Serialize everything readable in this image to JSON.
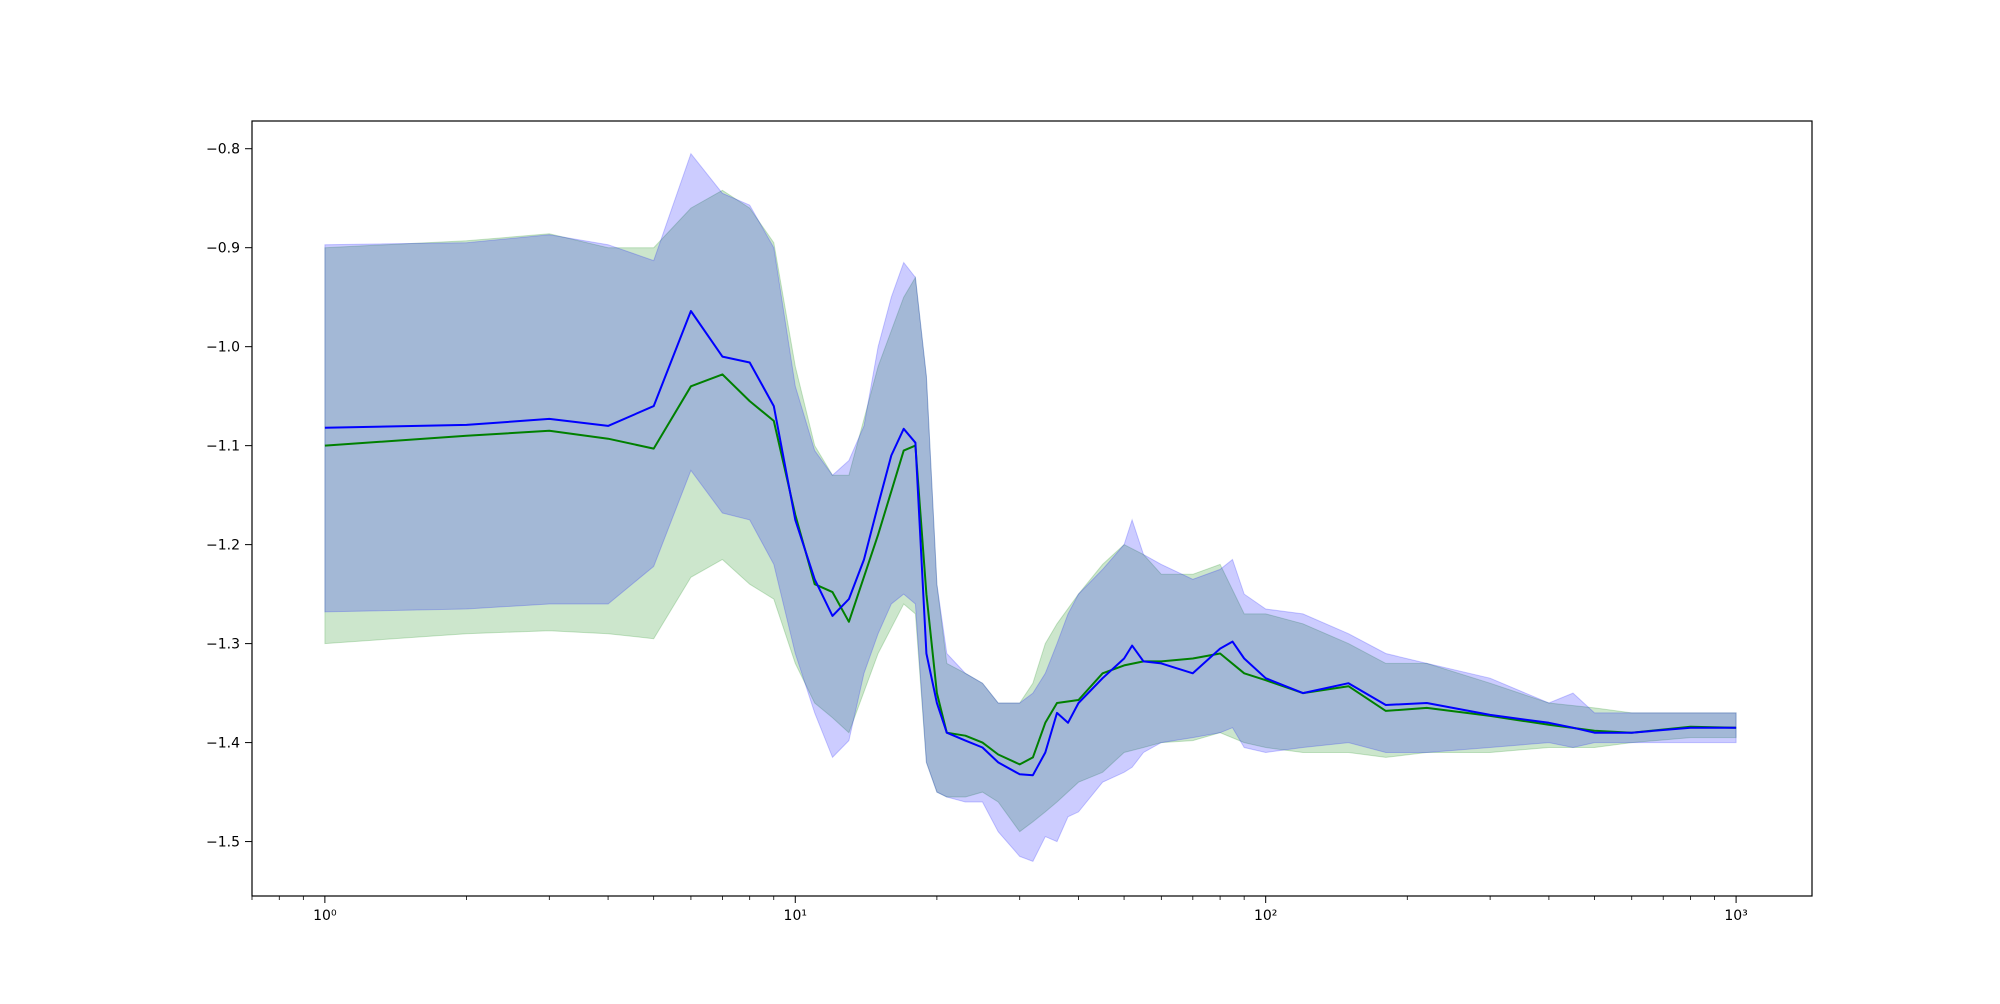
{
  "chart_data": {
    "type": "line",
    "title": "",
    "xlabel": "",
    "ylabel": "",
    "xscale": "log",
    "xlim": [
      0.7,
      1450
    ],
    "ylim": [
      -1.555,
      -0.772
    ],
    "grid": false,
    "legend": "none",
    "x_ticks": [
      {
        "value": 1,
        "label": "10⁰"
      },
      {
        "value": 10,
        "label": "10¹"
      },
      {
        "value": 100,
        "label": "10²"
      },
      {
        "value": 1000,
        "label": "10³"
      }
    ],
    "y_ticks": [
      {
        "value": -0.8,
        "label": "−0.8"
      },
      {
        "value": -0.9,
        "label": "−0.9"
      },
      {
        "value": -1.0,
        "label": "−1.0"
      },
      {
        "value": -1.1,
        "label": "−1.1"
      },
      {
        "value": -1.2,
        "label": "−1.2"
      },
      {
        "value": -1.3,
        "label": "−1.3"
      },
      {
        "value": -1.4,
        "label": "−1.4"
      },
      {
        "value": -1.5,
        "label": "−1.5"
      }
    ],
    "series": [
      {
        "color": "#008000",
        "band_color": "#008000",
        "x": [
          1,
          2,
          3,
          4,
          5,
          6,
          7,
          8,
          9,
          10,
          11,
          12,
          13,
          15,
          17,
          18,
          19,
          20,
          21,
          23,
          25,
          27,
          30,
          32,
          34,
          36,
          40,
          45,
          50,
          55,
          60,
          70,
          80,
          90,
          100,
          120,
          150,
          180,
          220,
          300,
          400,
          500,
          600,
          800,
          1000
        ],
        "y": [
          -1.1,
          -1.09,
          -1.085,
          -1.093,
          -1.103,
          -1.04,
          -1.028,
          -1.055,
          -1.075,
          -1.17,
          -1.24,
          -1.248,
          -1.278,
          -1.19,
          -1.105,
          -1.1,
          -1.25,
          -1.35,
          -1.39,
          -1.393,
          -1.4,
          -1.412,
          -1.422,
          -1.415,
          -1.38,
          -1.36,
          -1.357,
          -1.33,
          -1.322,
          -1.318,
          -1.318,
          -1.315,
          -1.31,
          -1.33,
          -1.337,
          -1.35,
          -1.343,
          -1.368,
          -1.365,
          -1.373,
          -1.382,
          -1.388,
          -1.39,
          -1.384,
          -1.385
        ],
        "lower": [
          -1.3,
          -1.29,
          -1.287,
          -1.29,
          -1.295,
          -1.233,
          -1.215,
          -1.24,
          -1.255,
          -1.32,
          -1.36,
          -1.375,
          -1.39,
          -1.31,
          -1.26,
          -1.27,
          -1.42,
          -1.45,
          -1.455,
          -1.455,
          -1.45,
          -1.46,
          -1.49,
          -1.48,
          -1.47,
          -1.46,
          -1.44,
          -1.43,
          -1.41,
          -1.405,
          -1.4,
          -1.398,
          -1.39,
          -1.4,
          -1.405,
          -1.41,
          -1.41,
          -1.415,
          -1.41,
          -1.41,
          -1.405,
          -1.405,
          -1.4,
          -1.395,
          -1.395
        ],
        "upper": [
          -0.9,
          -0.893,
          -0.886,
          -0.9,
          -0.9,
          -0.86,
          -0.842,
          -0.86,
          -0.895,
          -1.02,
          -1.1,
          -1.13,
          -1.13,
          -1.02,
          -0.95,
          -0.93,
          -1.03,
          -1.24,
          -1.32,
          -1.33,
          -1.34,
          -1.36,
          -1.36,
          -1.34,
          -1.3,
          -1.28,
          -1.25,
          -1.22,
          -1.2,
          -1.21,
          -1.23,
          -1.23,
          -1.22,
          -1.27,
          -1.27,
          -1.28,
          -1.3,
          -1.32,
          -1.32,
          -1.34,
          -1.36,
          -1.365,
          -1.37,
          -1.37,
          -1.37
        ]
      },
      {
        "color": "#0000ff",
        "band_color": "#0000ff",
        "x": [
          1,
          2,
          3,
          4,
          5,
          6,
          7,
          8,
          9,
          10,
          11,
          12,
          13,
          14,
          15,
          16,
          17,
          18,
          19,
          20,
          21,
          23,
          25,
          27,
          30,
          32,
          34,
          36,
          38,
          40,
          45,
          50,
          52,
          55,
          60,
          70,
          80,
          85,
          90,
          100,
          120,
          150,
          180,
          220,
          300,
          400,
          450,
          500,
          600,
          800,
          1000
        ],
        "y": [
          -1.082,
          -1.079,
          -1.073,
          -1.08,
          -1.06,
          -0.964,
          -1.01,
          -1.016,
          -1.06,
          -1.175,
          -1.235,
          -1.272,
          -1.255,
          -1.215,
          -1.16,
          -1.11,
          -1.083,
          -1.097,
          -1.31,
          -1.36,
          -1.39,
          -1.398,
          -1.405,
          -1.42,
          -1.432,
          -1.433,
          -1.41,
          -1.37,
          -1.38,
          -1.36,
          -1.335,
          -1.315,
          -1.302,
          -1.318,
          -1.32,
          -1.33,
          -1.305,
          -1.298,
          -1.315,
          -1.335,
          -1.35,
          -1.34,
          -1.362,
          -1.36,
          -1.372,
          -1.38,
          -1.385,
          -1.39,
          -1.39,
          -1.385,
          -1.385
        ],
        "lower": [
          -1.268,
          -1.265,
          -1.26,
          -1.26,
          -1.222,
          -1.125,
          -1.168,
          -1.175,
          -1.22,
          -1.31,
          -1.37,
          -1.415,
          -1.398,
          -1.33,
          -1.29,
          -1.26,
          -1.25,
          -1.26,
          -1.42,
          -1.45,
          -1.455,
          -1.46,
          -1.46,
          -1.49,
          -1.515,
          -1.52,
          -1.495,
          -1.5,
          -1.475,
          -1.47,
          -1.44,
          -1.43,
          -1.425,
          -1.41,
          -1.4,
          -1.395,
          -1.39,
          -1.385,
          -1.405,
          -1.41,
          -1.405,
          -1.4,
          -1.41,
          -1.41,
          -1.405,
          -1.4,
          -1.405,
          -1.4,
          -1.4,
          -1.4,
          -1.4
        ],
        "upper": [
          -0.897,
          -0.895,
          -0.887,
          -0.897,
          -0.913,
          -0.805,
          -0.845,
          -0.857,
          -0.9,
          -1.04,
          -1.105,
          -1.13,
          -1.115,
          -1.08,
          -1.0,
          -0.95,
          -0.915,
          -0.93,
          -1.03,
          -1.24,
          -1.31,
          -1.33,
          -1.34,
          -1.36,
          -1.36,
          -1.35,
          -1.33,
          -1.3,
          -1.27,
          -1.25,
          -1.225,
          -1.2,
          -1.175,
          -1.21,
          -1.22,
          -1.235,
          -1.225,
          -1.215,
          -1.25,
          -1.265,
          -1.27,
          -1.29,
          -1.31,
          -1.32,
          -1.335,
          -1.36,
          -1.35,
          -1.37,
          -1.37,
          -1.37,
          -1.37
        ]
      }
    ]
  }
}
